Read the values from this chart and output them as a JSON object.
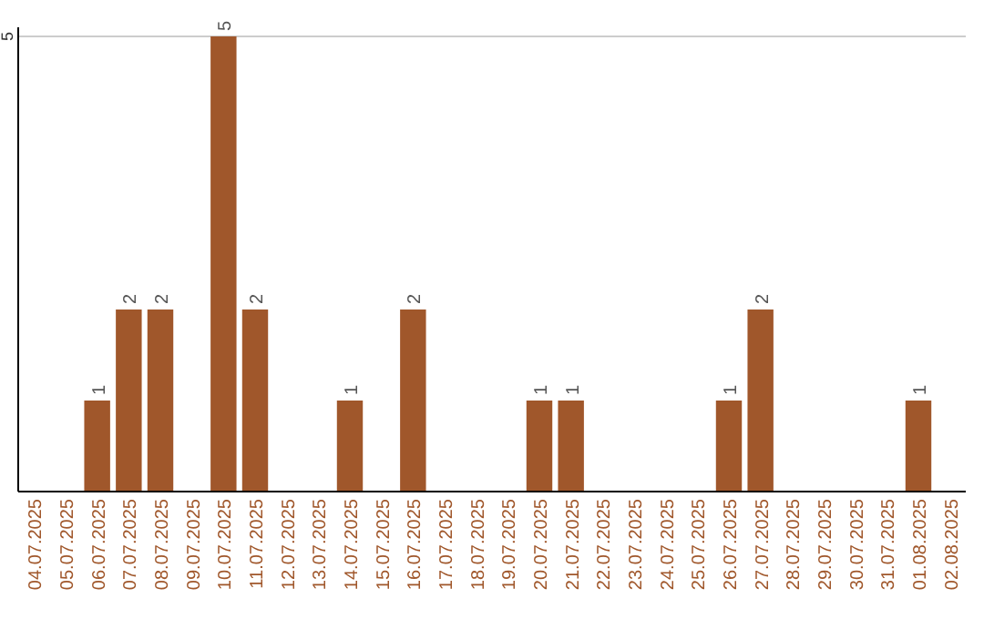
{
  "chart_data": {
    "type": "bar",
    "categories": [
      "04.07.2025",
      "05.07.2025",
      "06.07.2025",
      "07.07.2025",
      "08.07.2025",
      "09.07.2025",
      "10.07.2025",
      "11.07.2025",
      "12.07.2025",
      "13.07.2025",
      "14.07.2025",
      "15.07.2025",
      "16.07.2025",
      "17.07.2025",
      "18.07.2025",
      "19.07.2025",
      "20.07.2025",
      "21.07.2025",
      "22.07.2025",
      "23.07.2025",
      "24.07.2025",
      "25.07.2025",
      "26.07.2025",
      "27.07.2025",
      "28.07.2025",
      "29.07.2025",
      "30.07.2025",
      "31.07.2025",
      "01.08.2025",
      "02.08.2025"
    ],
    "values": [
      0,
      0,
      1,
      2,
      2,
      0,
      5,
      2,
      0,
      0,
      1,
      0,
      2,
      0,
      0,
      0,
      1,
      1,
      0,
      0,
      0,
      0,
      1,
      2,
      0,
      0,
      0,
      0,
      1,
      0
    ],
    "value_labels": [
      null,
      null,
      "1",
      "2",
      "2",
      null,
      "5",
      "2",
      null,
      null,
      "1",
      null,
      "2",
      null,
      null,
      null,
      "1",
      "1",
      null,
      null,
      null,
      null,
      "1",
      "2",
      null,
      null,
      null,
      null,
      "1",
      null
    ],
    "color": "#a0572b",
    "ylim": [
      0,
      5
    ],
    "yticks": [
      5
    ],
    "ref_lines": [
      {
        "axis": "y",
        "value": 5,
        "color": "#cccccc"
      }
    ]
  }
}
